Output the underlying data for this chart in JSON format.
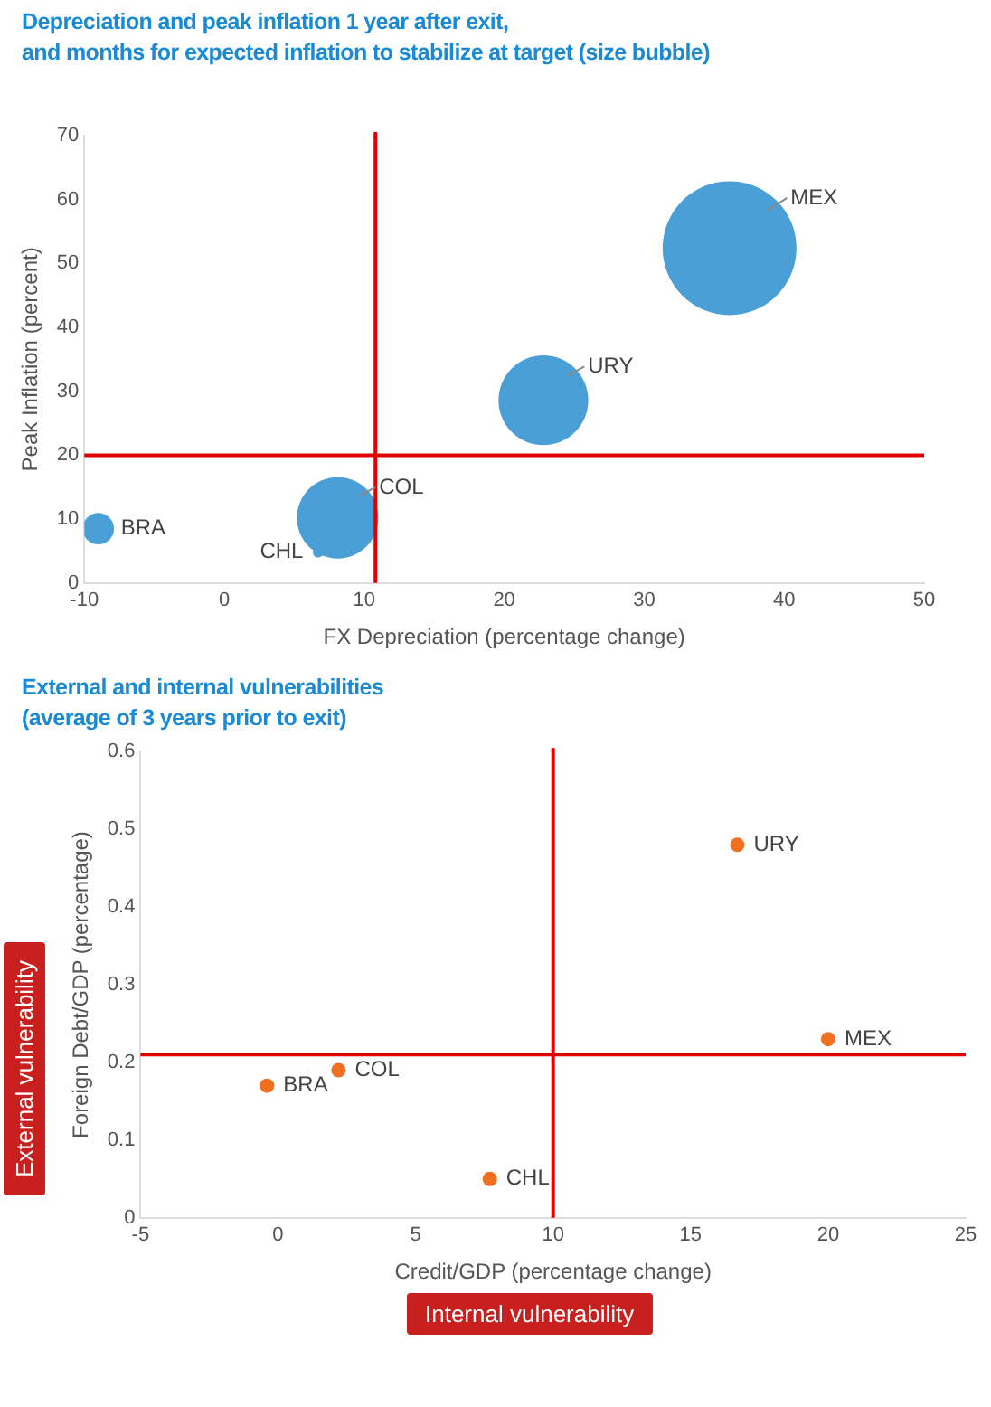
{
  "chart_data": [
    {
      "type": "bubble",
      "title": "Depreciation and peak inflation 1 year after exit,\nand months for expected inflation to stabilize at target (size bubble)",
      "xlabel": "FX Depreciation (percentage change)",
      "ylabel": "Peak Inflation (percent)",
      "series": [
        {
          "color": "#4a9fd6",
          "x": [
            -9,
            6.7,
            8.1,
            22.8,
            36.1
          ],
          "values": [
            8.5,
            4.8,
            10.2,
            28.6,
            52.4
          ],
          "sizes": [
            0.055,
            0.006,
            0.37,
            0.45,
            1
          ]
        }
      ],
      "xlim": [
        -10,
        50
      ],
      "xticks": [
        -10,
        0,
        10,
        20,
        30,
        40,
        50
      ],
      "ylim": [
        0,
        70
      ],
      "yticks": [
        0,
        10,
        20,
        30,
        40,
        50,
        60,
        70
      ],
      "grid": false,
      "legend": false,
      "ref_lines": [
        {
          "axis": "x",
          "value": 10.8,
          "color": "#e00000"
        },
        {
          "axis": "y",
          "value": 20,
          "color": "#e00000"
        }
      ],
      "annotations": [
        "BRA",
        "CHL",
        "COL",
        "URY",
        "MEX"
      ]
    },
    {
      "type": "scatter",
      "title": "External and internal vulnerabilities\n(average of 3 years prior to exit)",
      "xlabel": "Credit/GDP (percentage change)",
      "ylabel": "Foreign Debt/GDP (percentage)",
      "series": [
        {
          "color": "#f07020",
          "x": [
            -0.4,
            7.7,
            2.2,
            16.7,
            20
          ],
          "values": [
            0.17,
            0.05,
            0.19,
            0.48,
            0.23
          ]
        }
      ],
      "xlim": [
        -5,
        25
      ],
      "xticks": [
        -5,
        0,
        5,
        10,
        15,
        20,
        25
      ],
      "ylim": [
        0,
        0.6
      ],
      "yticks": [
        0,
        0.1,
        0.2,
        0.3,
        0.4,
        0.5,
        0.6
      ],
      "grid": false,
      "legend": false,
      "marker": "circle",
      "ref_lines": [
        {
          "axis": "x",
          "value": 10,
          "color": "#e00000"
        },
        {
          "axis": "y",
          "value": 0.21,
          "color": "#e00000"
        }
      ],
      "annotations": [
        {
          "text": "BRA",
          "x": -0.4,
          "y": 0.17
        },
        {
          "text": "CHL",
          "x": 7.7,
          "y": 0.05
        },
        {
          "text": "COL",
          "x": 2.2,
          "y": 0.19
        },
        {
          "text": "URY",
          "x": 16.7,
          "y": 0.48
        },
        {
          "text": "MEX",
          "x": 20,
          "y": 0.23
        },
        "External vulnerability",
        "Internal vulnerability"
      ]
    }
  ]
}
